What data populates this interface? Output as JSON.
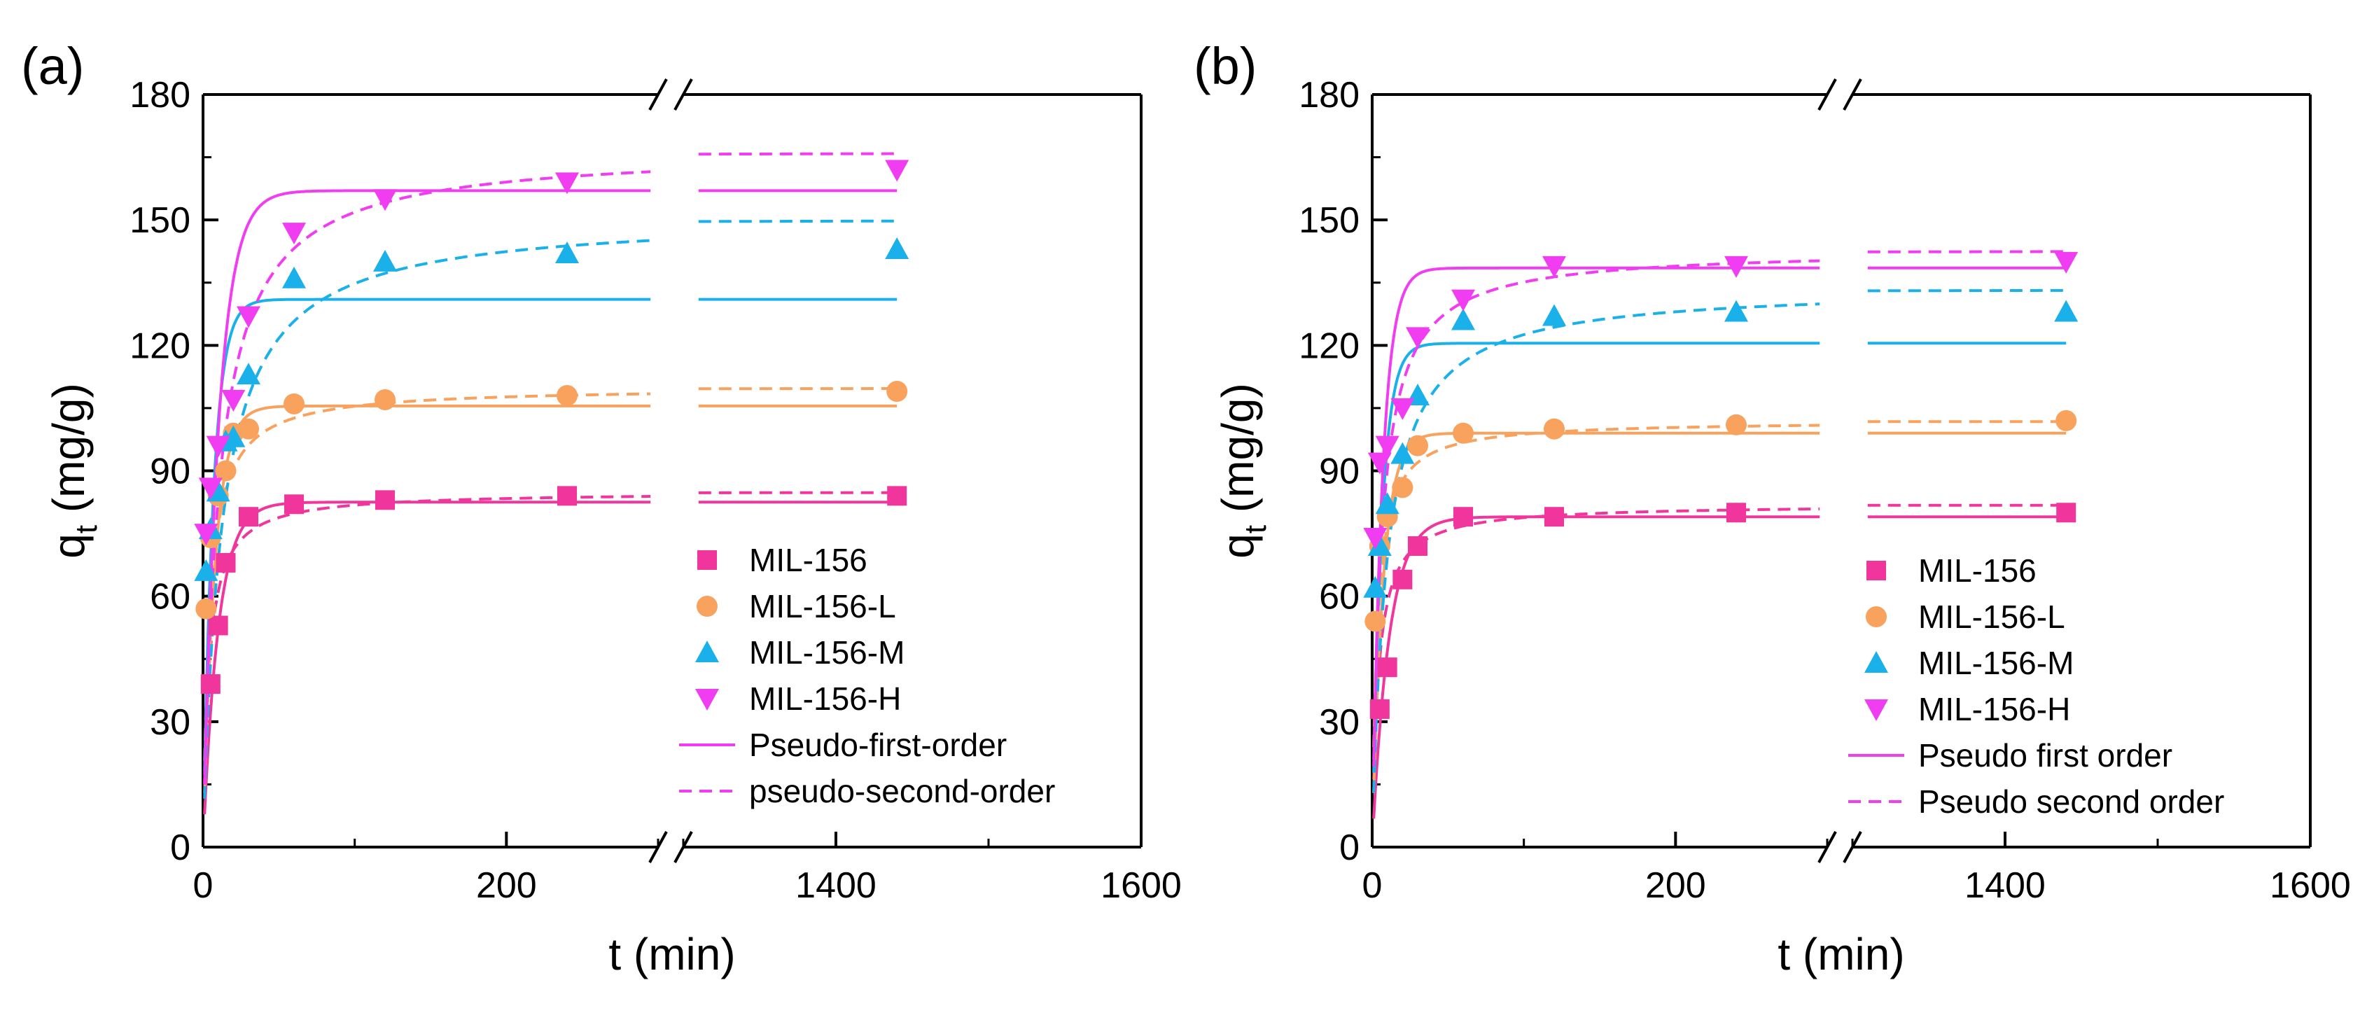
{
  "chart_data": [
    {
      "type": "scatter",
      "panel_label": "(a)",
      "xlabel": "t (min)",
      "ylabel": "q",
      "ylabel_sub": "t",
      "ylabel_suffix": " (mg/g)",
      "x_break": {
        "left_range": [
          0,
          300
        ],
        "right_range": [
          1300,
          1600
        ]
      },
      "xticks": [
        0,
        200,
        1400,
        1600
      ],
      "xtick_labels": [
        "0",
        "200",
        "1400",
        "1600"
      ],
      "ylim": [
        0,
        180
      ],
      "yticks": [
        0,
        30,
        60,
        90,
        120,
        150,
        180
      ],
      "ytick_labels": [
        "0",
        "30",
        "60",
        "90",
        "120",
        "150",
        "180"
      ],
      "legend_position": "bottom-right",
      "series": [
        {
          "name": "MIL-156",
          "marker": "square",
          "color": "#f0369d",
          "x": [
            5,
            10,
            15,
            30,
            60,
            120,
            240,
            1440
          ],
          "y": [
            39,
            53,
            68,
            79,
            82,
            83,
            84,
            84
          ],
          "pfo": {
            "qe": 82.5,
            "k": 0.1
          },
          "pso": {
            "qe": 85,
            "k": 0.003
          }
        },
        {
          "name": "MIL-156-L",
          "marker": "circle",
          "color": "#f8a25e",
          "x": [
            2,
            5,
            10,
            15,
            20,
            30,
            60,
            120,
            240,
            1440
          ],
          "y": [
            57,
            74,
            84,
            90,
            99,
            100,
            106,
            107,
            108,
            109
          ],
          "pfo": {
            "qe": 105.5,
            "k": 0.13
          },
          "pso": {
            "qe": 110,
            "k": 0.0021
          }
        },
        {
          "name": "MIL-156-M",
          "marker": "triangle-up",
          "color": "#1ab1eb",
          "x": [
            2,
            5,
            10,
            15,
            20,
            30,
            60,
            120,
            240,
            1440
          ],
          "y": [
            66,
            76,
            85,
            97,
            98,
            113,
            136,
            140,
            142,
            143
          ],
          "pfo": {
            "qe": 131,
            "k": 0.15
          },
          "pso": {
            "qe": 151,
            "k": 0.00055
          }
        },
        {
          "name": "MIL-156-H",
          "marker": "triangle-down",
          "color": "#f13df2",
          "x": [
            2,
            5,
            10,
            20,
            30,
            60,
            120,
            240,
            1440
          ],
          "y": [
            75,
            86,
            96,
            107,
            127,
            147,
            155,
            159,
            162
          ],
          "pfo": {
            "qe": 157,
            "k": 0.1
          },
          "pso": {
            "qe": 167,
            "k": 0.0006
          }
        }
      ],
      "legend_lines": [
        "Pseudo-first-order",
        "pseudo-second-order"
      ]
    },
    {
      "type": "scatter",
      "panel_label": "(b)",
      "xlabel": "t (min)",
      "ylabel": "q",
      "ylabel_sub": "t",
      "ylabel_suffix": " (mg/g)",
      "x_break": {
        "left_range": [
          0,
          300
        ],
        "right_range": [
          1300,
          1600
        ]
      },
      "xticks": [
        0,
        200,
        1400,
        1600
      ],
      "xtick_labels": [
        "0",
        "200",
        "1400",
        "1600"
      ],
      "ylim": [
        0,
        180
      ],
      "yticks": [
        0,
        30,
        60,
        90,
        120,
        150,
        180
      ],
      "ytick_labels": [
        "0",
        "30",
        "60",
        "90",
        "120",
        "150",
        "180"
      ],
      "legend_position": "bottom-right",
      "series": [
        {
          "name": "MIL-156",
          "marker": "square",
          "color": "#f0369d",
          "x": [
            5,
            10,
            20,
            30,
            60,
            120,
            240,
            1440
          ],
          "y": [
            33,
            43,
            64,
            72,
            79,
            79,
            80,
            80
          ],
          "pfo": {
            "qe": 79,
            "k": 0.09
          },
          "pso": {
            "qe": 82,
            "k": 0.003
          }
        },
        {
          "name": "MIL-156-L",
          "marker": "circle",
          "color": "#f8a25e",
          "x": [
            2,
            5,
            10,
            20,
            30,
            60,
            120,
            240,
            1440
          ],
          "y": [
            54,
            72,
            79,
            86,
            96,
            99,
            100,
            101,
            102
          ],
          "pfo": {
            "qe": 99,
            "k": 0.14
          },
          "pso": {
            "qe": 102,
            "k": 0.003
          }
        },
        {
          "name": "MIL-156-M",
          "marker": "triangle-up",
          "color": "#1ab1eb",
          "x": [
            2,
            5,
            10,
            20,
            30,
            60,
            120,
            240,
            1440
          ],
          "y": [
            62,
            72,
            82,
            94,
            108,
            126,
            127,
            128,
            128
          ],
          "pfo": {
            "qe": 120.5,
            "k": 0.16
          },
          "pso": {
            "qe": 134,
            "k": 0.0008
          }
        },
        {
          "name": "MIL-156-H",
          "marker": "triangle-down",
          "color": "#f13df2",
          "x": [
            2,
            5,
            10,
            20,
            30,
            60,
            120,
            240,
            1440
          ],
          "y": [
            74,
            92,
            96,
            105,
            122,
            131,
            139,
            139,
            140
          ],
          "pfo": {
            "qe": 138.5,
            "k": 0.15
          },
          "pso": {
            "qe": 143,
            "k": 0.0012
          }
        }
      ],
      "legend_lines": [
        "Pseudo first order",
        "Pseudo second order"
      ]
    }
  ]
}
